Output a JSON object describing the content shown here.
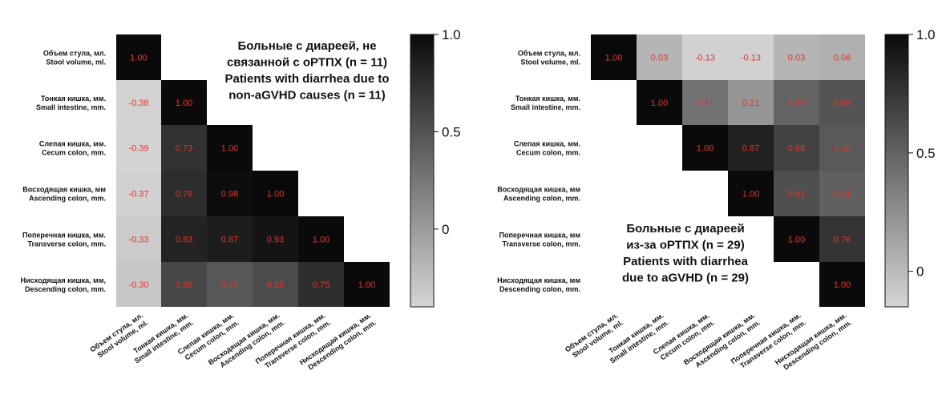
{
  "chart_data": [
    {
      "type": "heatmap",
      "layout": "lower-triangle",
      "title_lines": [
        "Больные с диареей, не",
        "связанной с оРТПХ (n  = 11)",
        "Patients with diarrhea due to",
        "non-aGVHD causes (n = 11)"
      ],
      "row_labels": [
        [
          "Объем стула, мл.",
          "Stool volume, ml."
        ],
        [
          "Тонкая кишка, мм.",
          "Small intestine, mm."
        ],
        [
          "Слепая кишка, мм.",
          "Cecum colon, mm."
        ],
        [
          "Восходящая кишка, мм",
          "Ascending colon, mm."
        ],
        [
          "Поперечная кишка, мм.",
          "Transverse colon, mm."
        ],
        [
          "Нисходящая кишка, мм,",
          "Descending colon, mm."
        ]
      ],
      "col_labels": [
        [
          "Объем стула, мл.",
          "Stool volume, ml."
        ],
        [
          "Тонкая кишка, мм.",
          "Small intestine, mm."
        ],
        [
          "Слепая кишка, мм.",
          "Cecum colon, mm."
        ],
        [
          "Восходящая кишка, мм.",
          "Ascending colon, mm."
        ],
        [
          "Поперечная кишка, мм.",
          "Transverse colon, mm."
        ],
        [
          "Нисходящая кишка, мм.",
          "Descending colon, mm."
        ]
      ],
      "matrix": [
        [
          1.0,
          null,
          null,
          null,
          null,
          null
        ],
        [
          -0.38,
          1.0,
          null,
          null,
          null,
          null
        ],
        [
          -0.39,
          0.73,
          1.0,
          null,
          null,
          null
        ],
        [
          -0.37,
          0.76,
          0.98,
          1.0,
          null,
          null
        ],
        [
          -0.33,
          0.83,
          0.87,
          0.93,
          1.0,
          null
        ],
        [
          -0.3,
          0.58,
          0.47,
          0.55,
          0.75,
          1.0
        ]
      ],
      "colorbar": {
        "min": -0.4,
        "max": 1.0,
        "ticks": [
          1.0,
          0.5,
          0
        ],
        "tick_labels": [
          "1.0",
          "0.5",
          "0"
        ]
      }
    },
    {
      "type": "heatmap",
      "layout": "upper-triangle",
      "title_lines": [
        "Больные с диареей",
        "из-за оРТПХ (n  = 29)",
        "Patients with diarrhea",
        "due to aGVHD (n  = 29)"
      ],
      "row_labels": [
        [
          "Объем стула, мл.",
          "Stool volume, ml."
        ],
        [
          "Тонкая кишка, мм.",
          "Small intestine, mm."
        ],
        [
          "Слепая кишка, мм.",
          "Cecum colon, mm."
        ],
        [
          "Восходящая кишка, мм",
          "Ascending colon, mm."
        ],
        [
          "Поперечная кишка, мм",
          "Transverse colon, mm."
        ],
        [
          "Нисходящая кишка, мм",
          "Descending colon, mm."
        ]
      ],
      "col_labels": [
        [
          "Объем стула, мл.",
          "Stool volume, ml."
        ],
        [
          "Тонкая кишка, мм.",
          "Small intestine, mm."
        ],
        [
          "Слепая кишка, мм.",
          "Cecum colon, mm."
        ],
        [
          "Восходящая кишка, мм.",
          "Ascending colon, mm."
        ],
        [
          "Поперечная кишка, мм.",
          "Transverse colon, mm."
        ],
        [
          "Нисходящая кишка, мм.",
          "Descending colon, mm."
        ]
      ],
      "matrix": [
        [
          1.0,
          0.03,
          -0.13,
          -0.13,
          0.03,
          0.06
        ],
        [
          null,
          1.0,
          0.41,
          0.21,
          0.49,
          0.58
        ],
        [
          null,
          null,
          1.0,
          0.87,
          0.68,
          0.55
        ],
        [
          null,
          null,
          null,
          1.0,
          0.61,
          0.51
        ],
        [
          null,
          null,
          null,
          null,
          1.0,
          0.76
        ],
        [
          null,
          null,
          null,
          null,
          null,
          1.0
        ]
      ],
      "colorbar": {
        "min": -0.15,
        "max": 1.0,
        "ticks": [
          1.0,
          0.5,
          0
        ],
        "tick_labels": [
          "1.0",
          "0.5",
          "0"
        ]
      }
    }
  ]
}
